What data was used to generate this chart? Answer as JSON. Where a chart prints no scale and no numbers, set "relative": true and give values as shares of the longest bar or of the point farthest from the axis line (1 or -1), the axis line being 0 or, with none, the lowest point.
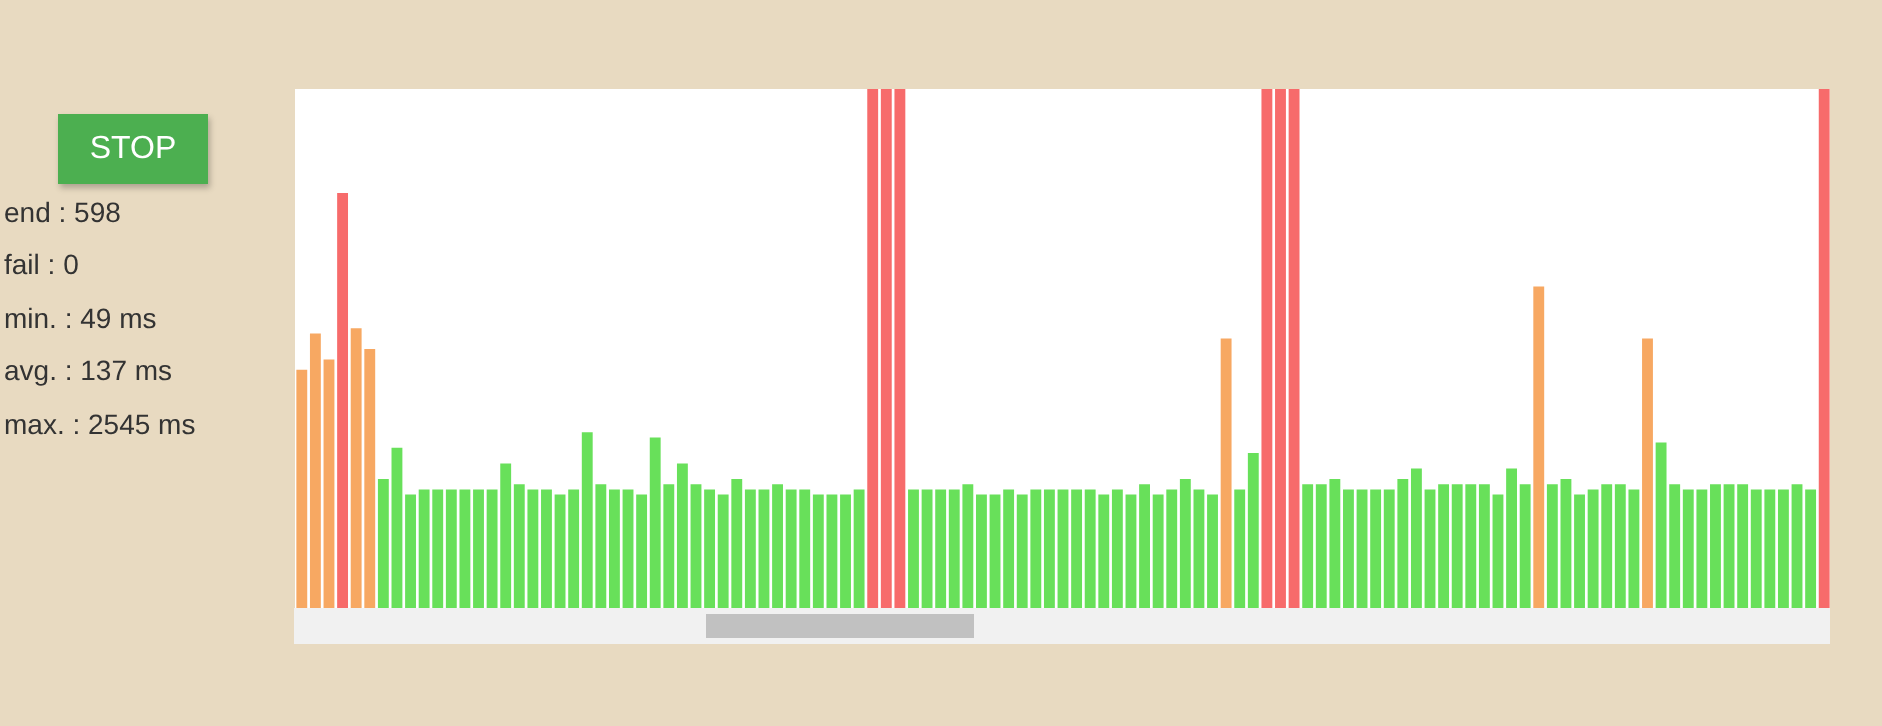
{
  "chart_data": {
    "type": "bar",
    "relative": true,
    "categories": [
      null,
      null,
      null,
      null,
      null,
      null,
      null,
      null,
      null,
      null,
      null,
      null,
      null,
      null,
      null,
      null,
      null,
      null,
      null,
      null,
      null,
      null,
      null,
      null,
      null,
      null,
      null,
      null,
      null,
      null,
      null,
      null,
      null,
      null,
      null,
      null,
      null,
      null,
      null,
      null,
      null,
      null,
      null,
      null,
      null,
      null,
      null,
      null,
      null,
      null,
      null,
      null,
      null,
      null,
      null,
      null,
      null,
      null,
      null,
      null,
      null,
      null,
      null,
      null,
      null,
      null,
      null,
      null,
      null,
      null,
      null,
      null,
      null,
      null,
      null,
      null,
      null,
      null,
      null,
      null,
      null,
      null,
      null,
      null,
      null,
      null,
      null,
      null,
      null,
      null,
      null,
      null,
      null,
      null,
      null,
      null,
      null,
      null,
      null,
      null,
      null,
      null,
      null,
      null,
      null,
      null,
      null,
      null,
      null,
      null,
      null,
      null,
      null
    ],
    "values": [
      0.46,
      0.53,
      0.48,
      0.8,
      0.54,
      0.5,
      0.25,
      0.31,
      0.22,
      0.23,
      0.23,
      0.23,
      0.23,
      0.23,
      0.23,
      0.28,
      0.24,
      0.23,
      0.23,
      0.22,
      0.23,
      0.34,
      0.24,
      0.23,
      0.23,
      0.22,
      0.33,
      0.24,
      0.28,
      0.24,
      0.23,
      0.22,
      0.25,
      0.23,
      0.23,
      0.24,
      0.23,
      0.23,
      0.22,
      0.22,
      0.22,
      0.23,
      1,
      1,
      1,
      0.23,
      0.23,
      0.23,
      0.23,
      0.24,
      0.22,
      0.22,
      0.23,
      0.22,
      0.23,
      0.23,
      0.23,
      0.23,
      0.23,
      0.22,
      0.23,
      0.22,
      0.24,
      0.22,
      0.23,
      0.25,
      0.23,
      0.22,
      0.52,
      0.23,
      0.3,
      1,
      1,
      1,
      0.24,
      0.24,
      0.25,
      0.23,
      0.23,
      0.23,
      0.23,
      0.25,
      0.27,
      0.23,
      0.24,
      0.24,
      0.24,
      0.24,
      0.22,
      0.27,
      0.24,
      0.62,
      0.24,
      0.25,
      0.22,
      0.23,
      0.24,
      0.24,
      0.23,
      0.52,
      0.32,
      0.24,
      0.23,
      0.23,
      0.24,
      0.24,
      0.24,
      0.23,
      0.23,
      0.23,
      0.24,
      0.23,
      1
    ],
    "colors": [
      "#f7a862",
      "#f7a862",
      "#f7a862",
      "#f76b6b",
      "#f7a862",
      "#f7a862",
      "#68e05a",
      "#68e05a",
      "#68e05a",
      "#68e05a",
      "#68e05a",
      "#68e05a",
      "#68e05a",
      "#68e05a",
      "#68e05a",
      "#68e05a",
      "#68e05a",
      "#68e05a",
      "#68e05a",
      "#68e05a",
      "#68e05a",
      "#68e05a",
      "#68e05a",
      "#68e05a",
      "#68e05a",
      "#68e05a",
      "#68e05a",
      "#68e05a",
      "#68e05a",
      "#68e05a",
      "#68e05a",
      "#68e05a",
      "#68e05a",
      "#68e05a",
      "#68e05a",
      "#68e05a",
      "#68e05a",
      "#68e05a",
      "#68e05a",
      "#68e05a",
      "#68e05a",
      "#68e05a",
      "#f76b6b",
      "#f76b6b",
      "#f76b6b",
      "#68e05a",
      "#68e05a",
      "#68e05a",
      "#68e05a",
      "#68e05a",
      "#68e05a",
      "#68e05a",
      "#68e05a",
      "#68e05a",
      "#68e05a",
      "#68e05a",
      "#68e05a",
      "#68e05a",
      "#68e05a",
      "#68e05a",
      "#68e05a",
      "#68e05a",
      "#68e05a",
      "#68e05a",
      "#68e05a",
      "#68e05a",
      "#68e05a",
      "#68e05a",
      "#f7a862",
      "#68e05a",
      "#68e05a",
      "#f76b6b",
      "#f76b6b",
      "#f76b6b",
      "#68e05a",
      "#68e05a",
      "#68e05a",
      "#68e05a",
      "#68e05a",
      "#68e05a",
      "#68e05a",
      "#68e05a",
      "#68e05a",
      "#68e05a",
      "#68e05a",
      "#68e05a",
      "#68e05a",
      "#68e05a",
      "#68e05a",
      "#68e05a",
      "#68e05a",
      "#f7a862",
      "#68e05a",
      "#68e05a",
      "#68e05a",
      "#68e05a",
      "#68e05a",
      "#68e05a",
      "#68e05a",
      "#f7a862",
      "#68e05a",
      "#68e05a",
      "#68e05a",
      "#68e05a",
      "#68e05a",
      "#68e05a",
      "#68e05a",
      "#68e05a",
      "#68e05a",
      "#68e05a",
      "#68e05a",
      "#68e05a",
      "#f76b6b"
    ],
    "annotations": [
      "STOP",
      "end : 598",
      "fail : 0",
      "min. : 49 ms",
      "avg. : 137 ms",
      "max. : 2545 ms"
    ],
    "grid": false
  }
}
